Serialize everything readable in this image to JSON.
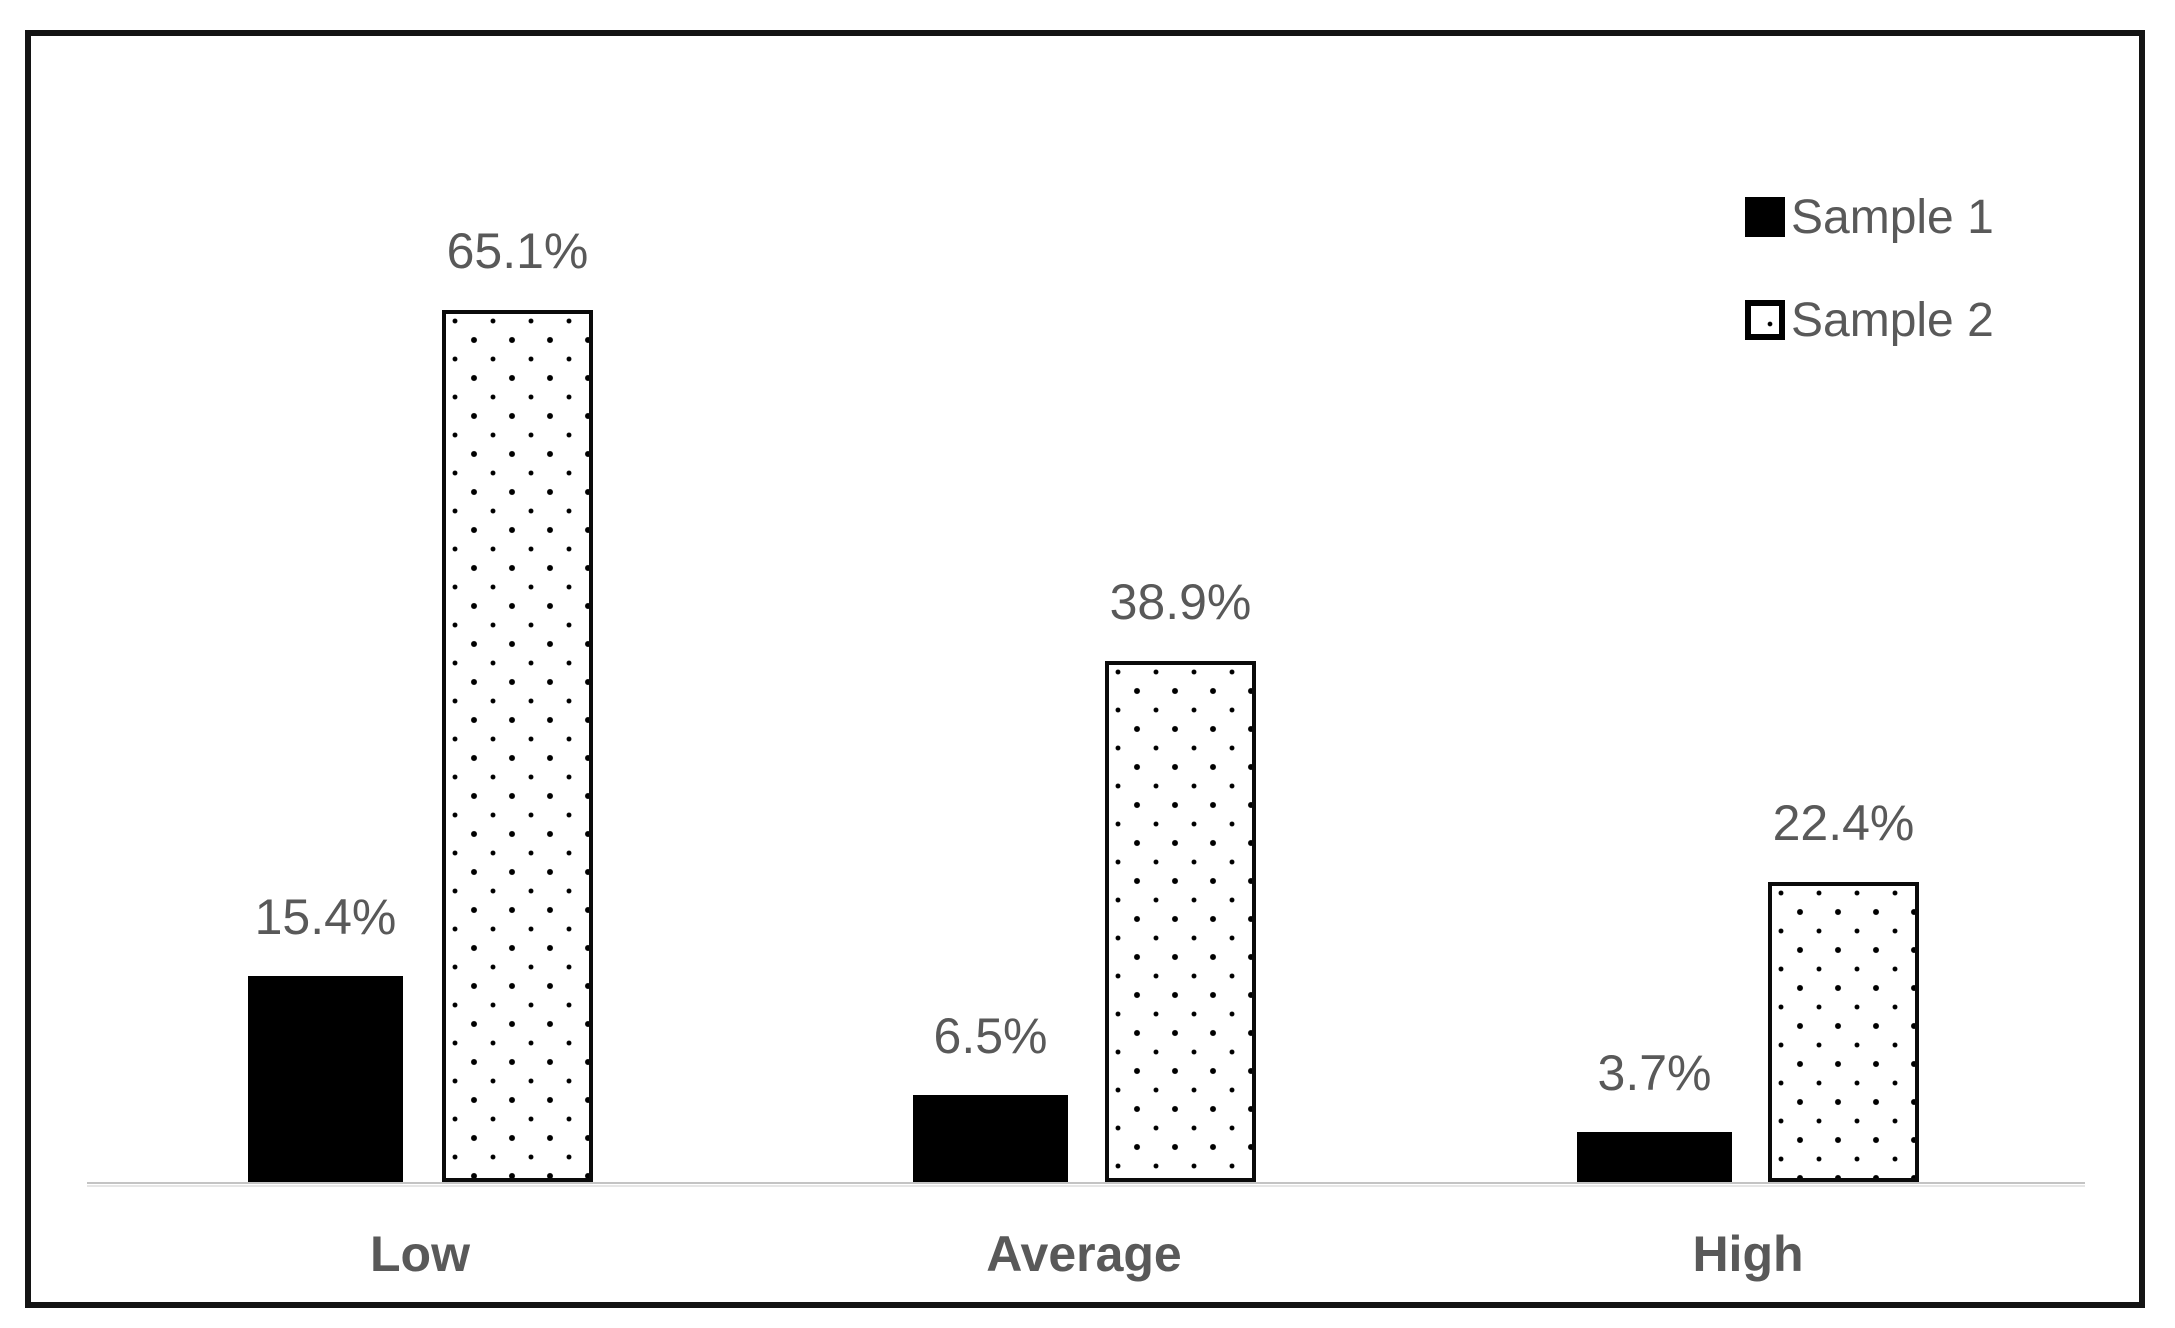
{
  "chart_data": {
    "type": "bar",
    "title": "",
    "categories": [
      "Low",
      "Average",
      "High"
    ],
    "series": [
      {
        "name": "Sample 1",
        "values": [
          15.4,
          6.5,
          3.7
        ],
        "data_labels": [
          "15.4%",
          "6.5%",
          "3.7%"
        ],
        "fill": "solid-black"
      },
      {
        "name": "Sample 2",
        "values": [
          65.1,
          38.9,
          22.4
        ],
        "data_labels": [
          "65.1%",
          "38.9%",
          "22.4%"
        ],
        "fill": "white-with-black-dots"
      }
    ],
    "value_unit": "%",
    "y_axis_visible": false,
    "x_axis_visible": true,
    "grid": false,
    "legend_position": "top-right",
    "legend_entries": [
      "Sample 1",
      "Sample 2"
    ]
  },
  "colors": {
    "bar_solid": "#000000",
    "bar_pattern_bg": "#ffffff",
    "bar_pattern_dot": "#000000",
    "text_gray": "#595959",
    "axis_line": "#d9d9d9",
    "frame_border": "#141414",
    "background": "#ffffff"
  }
}
